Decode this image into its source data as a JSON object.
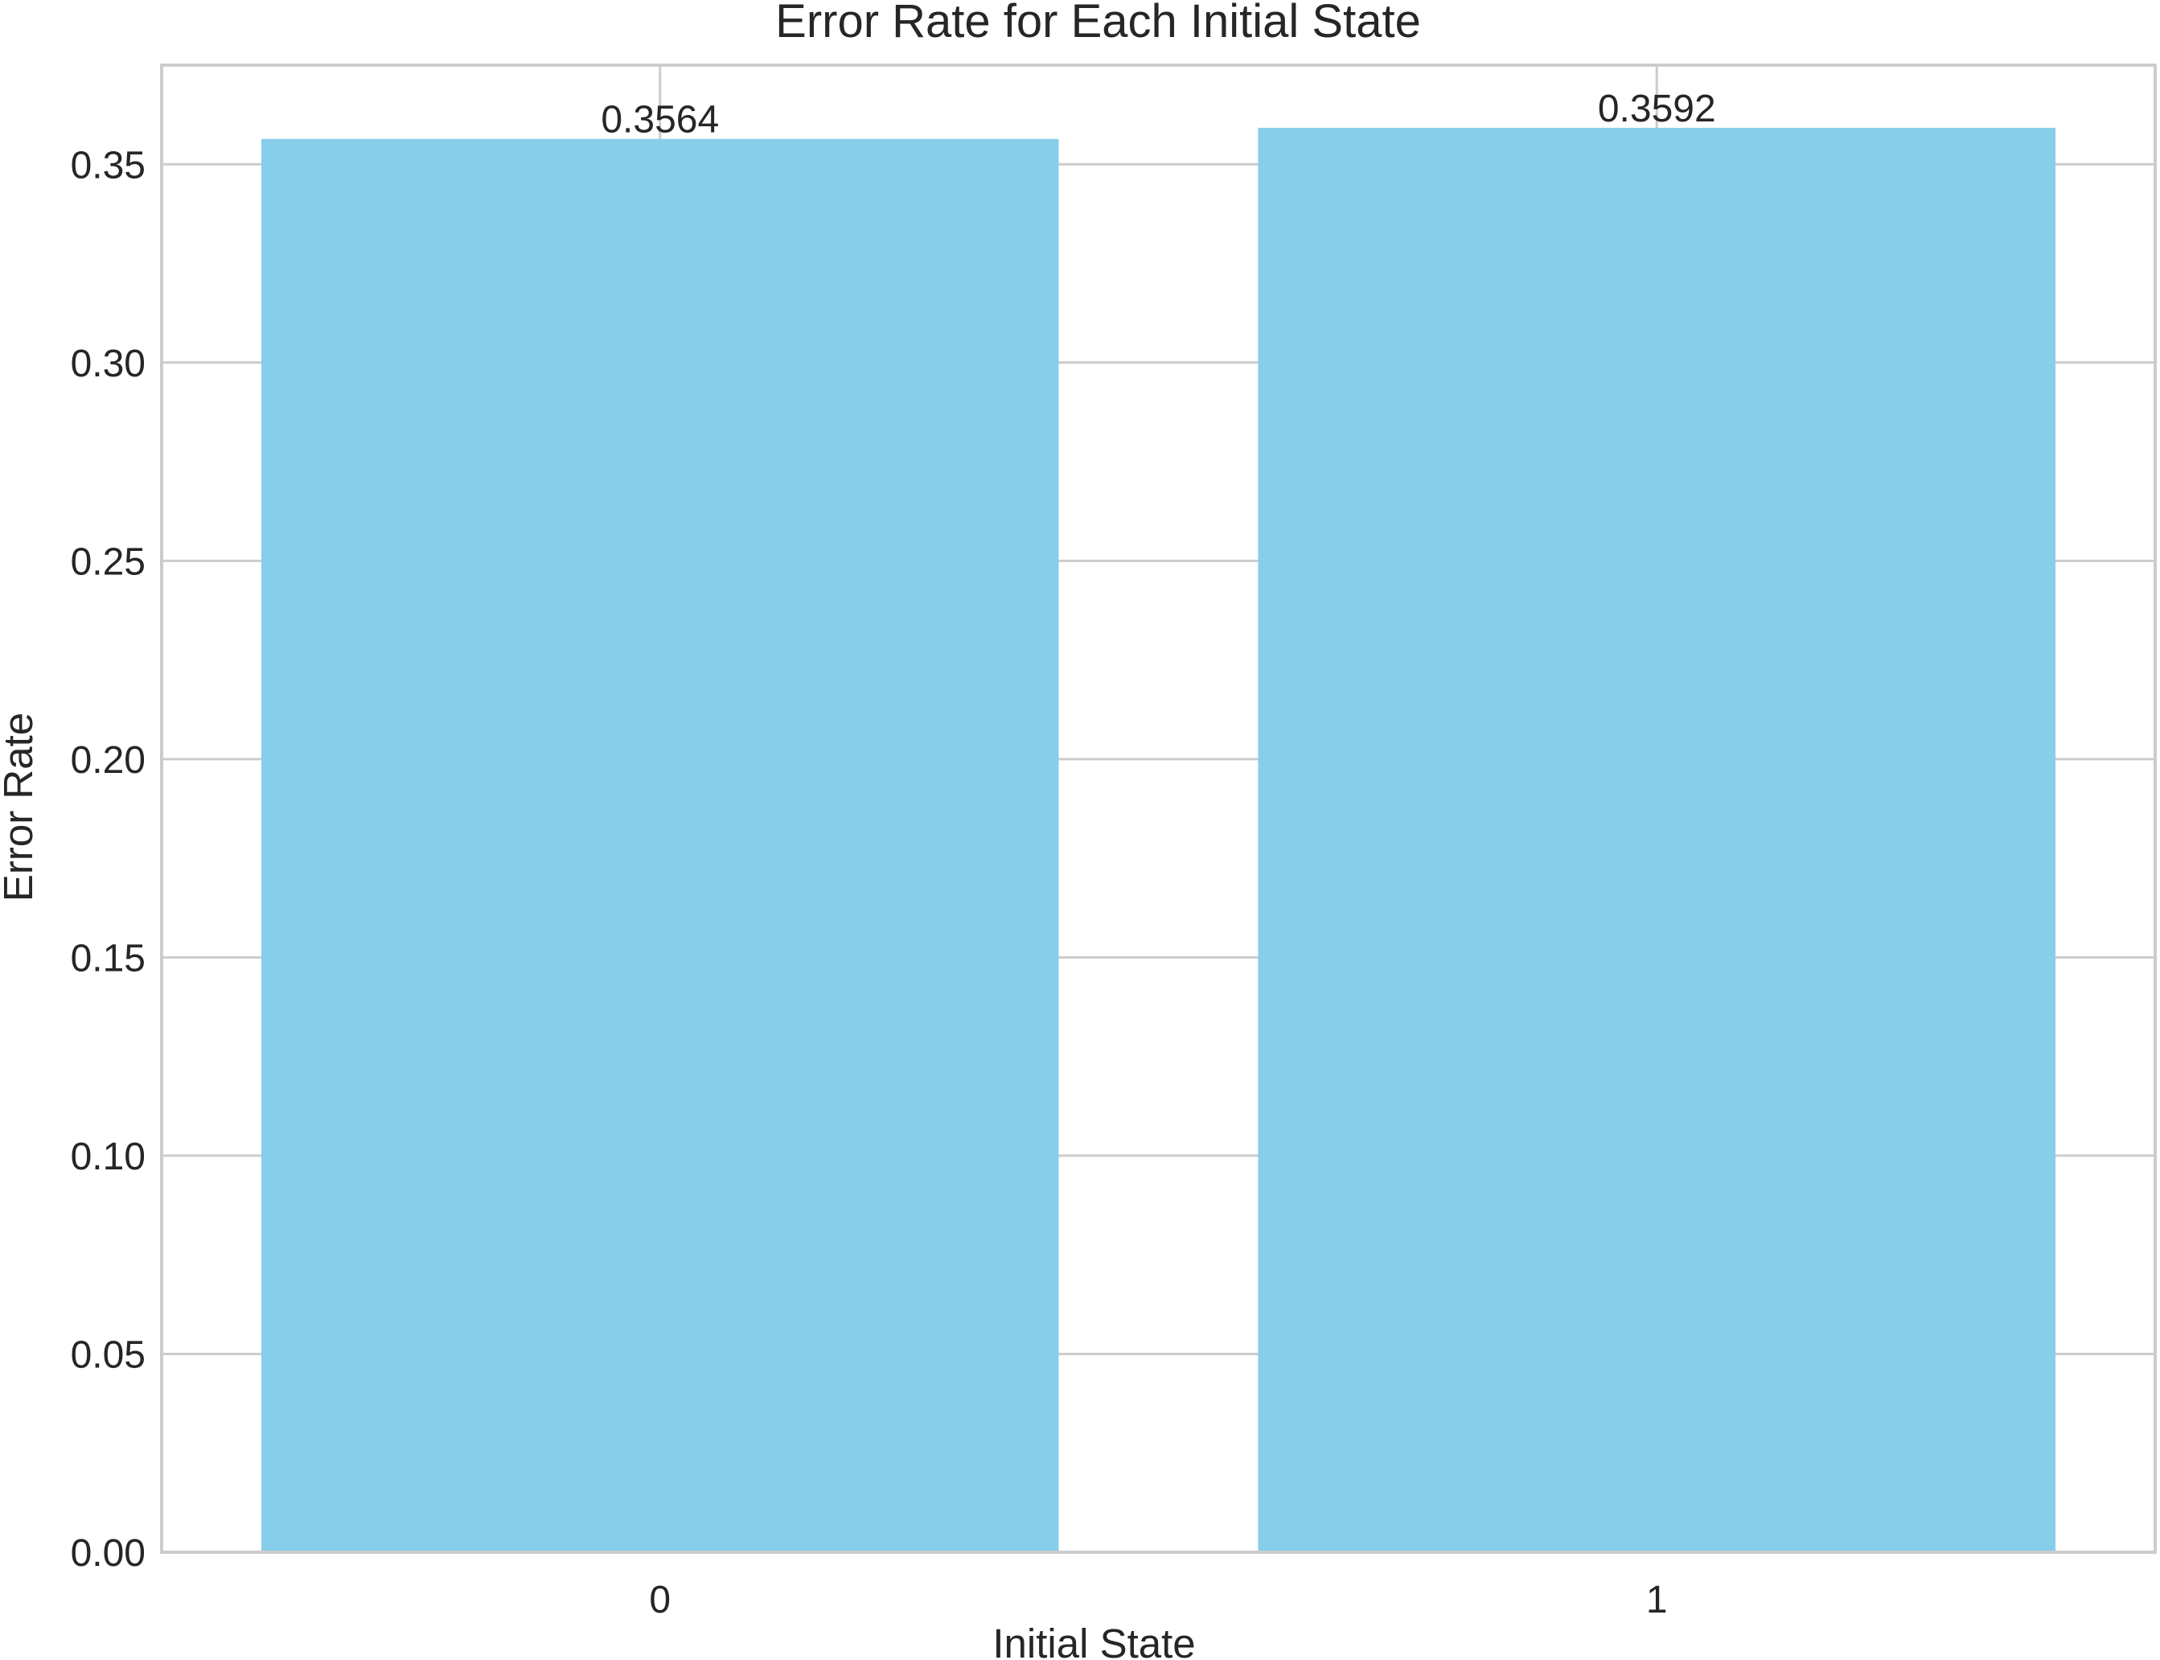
{
  "chart_data": {
    "type": "bar",
    "title": "Error Rate for Each Initial State",
    "xlabel": "Initial State",
    "ylabel": "Error Rate",
    "categories": [
      "0",
      "1"
    ],
    "values": [
      0.3564,
      0.3592
    ],
    "value_labels": [
      "0.3564",
      "0.3592"
    ],
    "ylim": [
      0,
      0.375
    ],
    "yticks": [
      0.0,
      0.05,
      0.1,
      0.15,
      0.2,
      0.25,
      0.3,
      0.35
    ],
    "ytick_labels": [
      "0.00",
      "0.05",
      "0.10",
      "0.15",
      "0.20",
      "0.25",
      "0.30",
      "0.35"
    ],
    "grid": true,
    "bar_color": "#87CEEB",
    "grid_color": "#cccccc",
    "frame_color": "#cccccc"
  }
}
